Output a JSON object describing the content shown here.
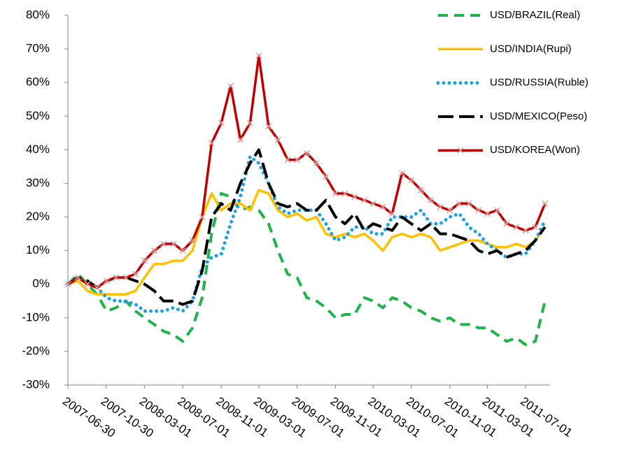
{
  "chart_data": {
    "type": "line",
    "x": [
      "2007-07-01",
      "2007-08-01",
      "2007-09-01",
      "2007-10-01",
      "2007-11-01",
      "2007-12-01",
      "2008-01-01",
      "2008-02-01",
      "2008-03-01",
      "2008-04-01",
      "2008-05-01",
      "2008-06-01",
      "2008-07-01",
      "2008-08-01",
      "2008-09-01",
      "2008-10-01",
      "2008-11-01",
      "2008-12-01",
      "2009-01-01",
      "2009-02-01",
      "2009-03-01",
      "2009-04-01",
      "2009-05-01",
      "2009-06-01",
      "2009-07-01",
      "2009-08-01",
      "2009-09-01",
      "2009-10-01",
      "2009-11-01",
      "2009-12-01",
      "2010-01-01",
      "2010-02-01",
      "2010-03-01",
      "2010-04-01",
      "2010-05-01",
      "2010-06-01",
      "2010-07-01",
      "2010-08-01",
      "2010-09-01",
      "2010-10-01",
      "2010-11-01",
      "2010-12-01",
      "2011-01-01",
      "2011-02-01",
      "2011-03-01",
      "2011-04-01",
      "2011-05-01",
      "2011-06-01",
      "2011-07-01",
      "2011-08-01",
      "2011-09-01"
    ],
    "series": [
      {
        "name": "USD/BRAZIL(Real)",
        "color": "#1fb34a",
        "style": "dashed",
        "values": [
          0,
          3,
          0,
          -3,
          -8,
          -7,
          -5,
          -8,
          -10,
          -12,
          -14,
          -15,
          -17,
          -13,
          -4,
          15,
          27,
          26,
          22,
          23,
          22,
          18,
          10,
          3,
          2,
          -4,
          -5,
          -7,
          -10,
          -9,
          -9,
          -4,
          -5,
          -7,
          -4,
          -5,
          -7,
          -8,
          -10,
          -11,
          -10,
          -12,
          -12,
          -13,
          -13,
          -15,
          -17,
          -16,
          -18,
          -17,
          -5
        ]
      },
      {
        "name": "USD/INDIA(Rupi)",
        "color": "#ffc000",
        "style": "solid",
        "values": [
          0,
          1,
          -2,
          -3,
          -3,
          -3,
          -3,
          -2,
          2,
          6,
          6,
          7,
          7,
          10,
          20,
          27,
          22,
          24,
          24,
          22,
          28,
          27,
          22,
          20,
          21,
          19,
          20,
          15,
          14,
          15,
          14,
          15,
          13,
          10,
          14,
          15,
          14,
          15,
          14,
          10,
          11,
          12,
          13,
          13,
          12,
          11,
          11,
          12,
          11,
          13,
          17
        ]
      },
      {
        "name": "USD/RUSSIA(Ruble)",
        "color": "#1ba1e2",
        "style": "dotted",
        "values": [
          0,
          2,
          0,
          -1,
          -4,
          -5,
          -5,
          -6,
          -8,
          -8,
          -8,
          -7,
          -8,
          -5,
          5,
          8,
          9,
          18,
          26,
          38,
          36,
          30,
          23,
          21,
          22,
          22,
          22,
          18,
          13,
          14,
          17,
          17,
          15,
          15,
          20,
          20,
          20,
          22,
          18,
          18,
          20,
          21,
          17,
          15,
          12,
          10,
          8,
          9,
          9,
          13,
          19
        ]
      },
      {
        "name": "USD/MEXICO(Peso)",
        "color": "#000000",
        "style": "longdash",
        "values": [
          0,
          2,
          1,
          -1,
          1,
          2,
          2,
          1,
          0,
          -2,
          -5,
          -5,
          -6,
          -5,
          4,
          20,
          24,
          22,
          30,
          36,
          40,
          30,
          24,
          23,
          24,
          22,
          22,
          25,
          20,
          18,
          21,
          16,
          18,
          17,
          16,
          20,
          18,
          16,
          18,
          15,
          15,
          14,
          13,
          10,
          9,
          10,
          8,
          9,
          10,
          13,
          17
        ]
      },
      {
        "name": "USD/KOREA(Won)",
        "color": "#c00000",
        "style": "solid",
        "marker": "x",
        "marker_color": "#e0a0a0",
        "values": [
          0,
          2,
          0,
          -1,
          1,
          2,
          2,
          3,
          7,
          10,
          12,
          12,
          10,
          13,
          20,
          42,
          48,
          59,
          43,
          48,
          68,
          47,
          43,
          37,
          37,
          39,
          36,
          32,
          27,
          27,
          26,
          25,
          24,
          23,
          21,
          33,
          31,
          28,
          25,
          23,
          22,
          24,
          24,
          22,
          21,
          22,
          18,
          17,
          16,
          17,
          24
        ]
      }
    ],
    "xlim": [
      "2007-06-30",
      "2011-09-17"
    ],
    "xticks": [
      "2007-06-30",
      "2007-10-30",
      "2008-03-01",
      "2008-07-01",
      "2008-11-01",
      "2009-03-01",
      "2009-07-01",
      "2009-11-01",
      "2010-03-01",
      "2010-07-01",
      "2010-11-01",
      "2011-03-01",
      "2011-07-01"
    ],
    "ylim": [
      -30,
      80
    ],
    "yticks": [
      {
        "value": -30,
        "label": "-30%"
      },
      {
        "value": -20,
        "label": "-20%"
      },
      {
        "value": -10,
        "label": "-10%"
      },
      {
        "value": 0,
        "label": "0%"
      },
      {
        "value": 10,
        "label": "10%"
      },
      {
        "value": 20,
        "label": "20%"
      },
      {
        "value": 30,
        "label": "30%"
      },
      {
        "value": 40,
        "label": "40%"
      },
      {
        "value": 50,
        "label": "50%"
      },
      {
        "value": 60,
        "label": "60%"
      },
      {
        "value": 70,
        "label": "70%"
      },
      {
        "value": 80,
        "label": "80%"
      }
    ],
    "legend": "top-right",
    "grid": false
  }
}
